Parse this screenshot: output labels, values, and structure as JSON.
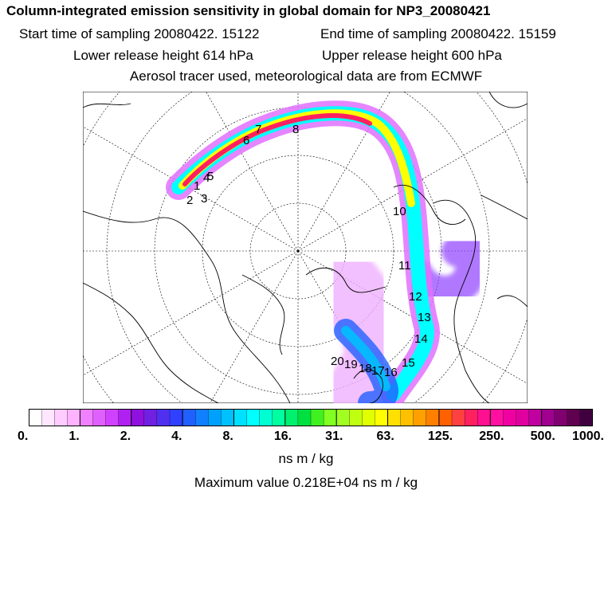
{
  "header": {
    "title": "Column-integrated emission sensitivity in global domain for NP3_20080421",
    "start": "Start time of sampling 20080422. 15122",
    "end": "End time of sampling 20080422. 15159",
    "lower": "Lower release height  614 hPa",
    "upper": "Upper release height  600 hPa",
    "tracer": "Aerosol tracer used, meteorological data are from ECMWF"
  },
  "map": {
    "projection": "polar-stereographic-north",
    "trajectory_labels": [
      "1",
      "2",
      "3",
      "4",
      "5",
      "6",
      "7",
      "8",
      "10",
      "11",
      "12",
      "13",
      "14",
      "15",
      "16",
      "17",
      "18",
      "19",
      "20"
    ]
  },
  "colorbar": {
    "tick_labels": [
      "0.",
      "1.",
      "2.",
      "4.",
      "8.",
      "16.",
      "31.",
      "63.",
      "125.",
      "250.",
      "500.",
      "1000."
    ],
    "colors": [
      "#ffffff",
      "#ffe6ff",
      "#ffccff",
      "#ffb3ff",
      "#f080ff",
      "#e060ff",
      "#d040ff",
      "#b020f0",
      "#9010e0",
      "#7020e0",
      "#5030f0",
      "#3040ff",
      "#2060ff",
      "#1080ff",
      "#00a0ff",
      "#00c0ff",
      "#00e0ff",
      "#00ffff",
      "#00ffd0",
      "#00ffa0",
      "#00f070",
      "#00e040",
      "#40f020",
      "#80ff20",
      "#a0ff20",
      "#c0ff10",
      "#e0ff00",
      "#ffff00",
      "#ffe000",
      "#ffc000",
      "#ffa000",
      "#ff8000",
      "#ff6000",
      "#ff4040",
      "#ff2060",
      "#ff1090",
      "#ff10a0",
      "#f000a0",
      "#e000a0",
      "#c000a0",
      "#a00090",
      "#800070",
      "#600050",
      "#400040"
    ],
    "units": "ns m / kg"
  },
  "footer": {
    "max_value": "Maximum value  0.218E+04 ns m / kg"
  }
}
